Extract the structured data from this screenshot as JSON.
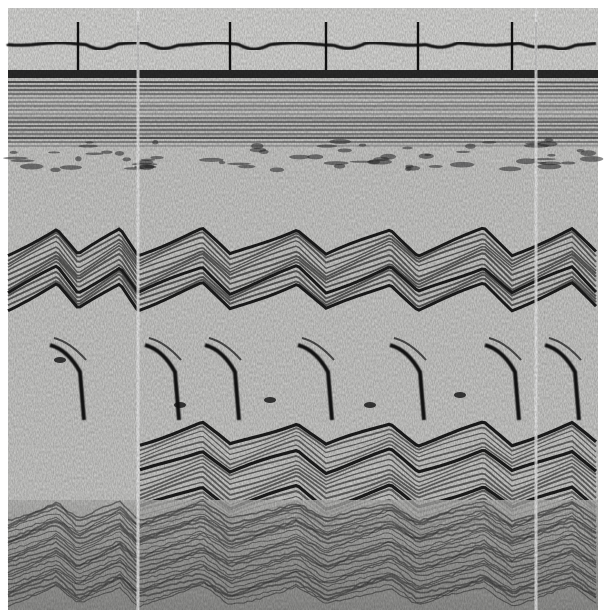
{
  "figure": {
    "kind": "grayscale M-mode echocardiogram recording",
    "palette": {
      "paper": "#ffffff",
      "film_light": "#d8d8d6",
      "film_mid": "#9a9a98",
      "trace_dark": "#2e2e2e",
      "trace_black": "#141414",
      "marker_white": "#fafafa"
    }
  }
}
